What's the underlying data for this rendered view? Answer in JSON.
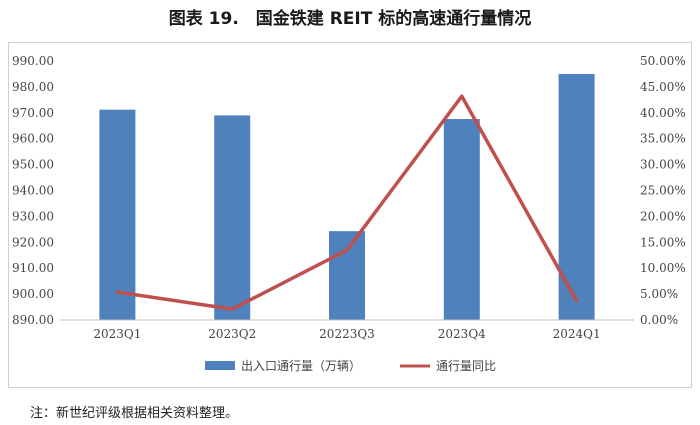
{
  "title": "图表 19.　国金铁建 REIT 标的高速通行量情况",
  "note": "注：新世纪评级根据相关资料整理。",
  "chart_data": {
    "type": "bar",
    "categories": [
      "2023Q1",
      "2023Q2",
      "20223Q3",
      "2023Q4",
      "2024Q1"
    ],
    "series": [
      {
        "name": "出入口通行量（万辆）",
        "type": "bar",
        "axis": "left",
        "values": [
          971.2,
          969.0,
          924.3,
          967.6,
          985.0
        ],
        "color": "#4f81bd"
      },
      {
        "name": "通行量同比",
        "type": "line",
        "axis": "right",
        "values": [
          5.4,
          2.1,
          13.5,
          43.2,
          3.7
        ],
        "color": "#c0504d"
      }
    ],
    "y_left": {
      "min": 890,
      "max": 990,
      "step": 10,
      "ticks": [
        "890.00",
        "900.00",
        "910.00",
        "920.00",
        "930.00",
        "940.00",
        "950.00",
        "960.00",
        "970.00",
        "980.00",
        "990.00"
      ]
    },
    "y_right": {
      "min": 0,
      "max": 50,
      "step": 5,
      "ticks": [
        "0.00%",
        "5.00%",
        "10.00%",
        "15.00%",
        "20.00%",
        "25.00%",
        "30.00%",
        "35.00%",
        "40.00%",
        "45.00%",
        "50.00%"
      ]
    },
    "legend_position": "bottom",
    "grid": false
  }
}
